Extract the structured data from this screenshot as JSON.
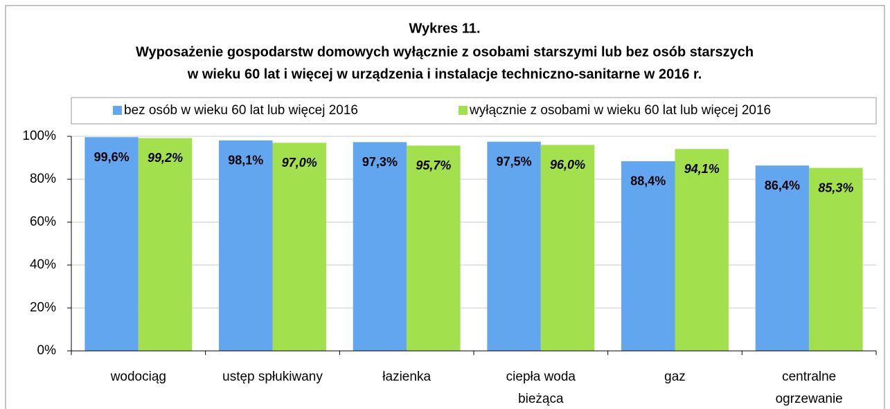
{
  "chart_data": {
    "type": "bar",
    "title": "Wykres 11.",
    "subtitle": [
      "Wyposażenie gospodarstw domowych wyłącznie z osobami starszymi lub bez osób starszych",
      "w wieku 60 lat i więcej w urządzenia i instalacje techniczno-sanitarne w 2016 r."
    ],
    "categories": [
      [
        "wodociąg"
      ],
      [
        "ustęp spłukiwany"
      ],
      [
        "łazienka"
      ],
      [
        "ciepła woda",
        "bieżąca"
      ],
      [
        "gaz"
      ],
      [
        "centralne",
        "ogrzewanie"
      ]
    ],
    "series": [
      {
        "name": "bez osób w wieku 60 lat lub więcej 2016",
        "color": "#62a6f0",
        "values": [
          99.6,
          98.1,
          97.3,
          97.5,
          88.4,
          86.4
        ],
        "value_labels": [
          "99,6%",
          "98,1%",
          "97,3%",
          "97,5%",
          "88,4%",
          "86,4%"
        ]
      },
      {
        "name": "wyłącznie z osobami w wieku 60 lat lub więcej 2016",
        "color": "#a3e04e",
        "values": [
          99.2,
          97.0,
          95.7,
          96.0,
          94.1,
          85.3
        ],
        "value_labels": [
          "99,2%",
          "97,0%",
          "95,7%",
          "96,0%",
          "94,1%",
          "85,3%"
        ]
      }
    ],
    "ylim": [
      0,
      100
    ],
    "yticks": [
      {
        "value": 0,
        "label": "0%"
      },
      {
        "value": 20,
        "label": "20%"
      },
      {
        "value": 40,
        "label": "40%"
      },
      {
        "value": 60,
        "label": "60%"
      },
      {
        "value": 80,
        "label": "80%"
      },
      {
        "value": 100,
        "label": "100%"
      }
    ],
    "grid": true,
    "legend": "top"
  }
}
